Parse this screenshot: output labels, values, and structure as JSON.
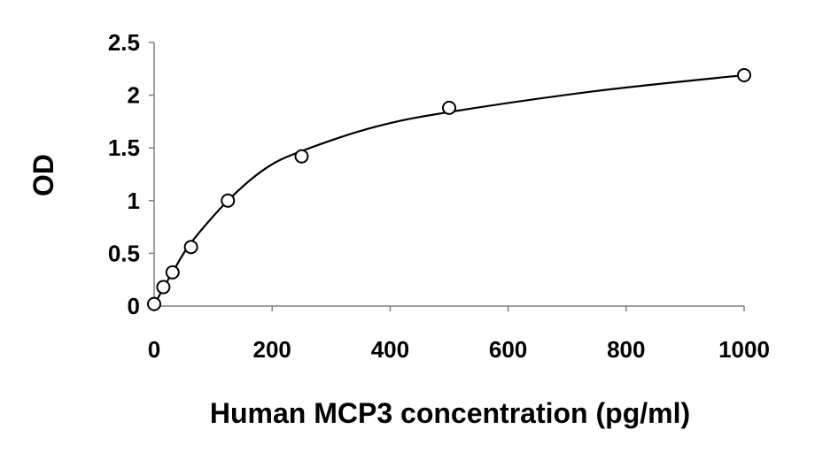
{
  "chart_data": {
    "type": "scatter",
    "title": "",
    "xlabel": "Human MCP3 concentration (pg/ml)",
    "ylabel": "OD",
    "xlim": [
      0,
      1000
    ],
    "ylim": [
      0,
      2.5
    ],
    "x_ticks": [
      "0",
      "200",
      "400",
      "600",
      "800",
      "1000"
    ],
    "y_ticks": [
      "0",
      "0.5",
      "1",
      "1.5",
      "2",
      "2.5"
    ],
    "grid": false,
    "legend": "none",
    "series": [
      {
        "marker": "open-circle",
        "color": "#000000",
        "points": [
          {
            "x": 0,
            "y": 0.02
          },
          {
            "x": 15.6,
            "y": 0.18
          },
          {
            "x": 31.2,
            "y": 0.32
          },
          {
            "x": 62.5,
            "y": 0.56
          },
          {
            "x": 125,
            "y": 1.0
          },
          {
            "x": 250,
            "y": 1.42
          },
          {
            "x": 500,
            "y": 1.88
          },
          {
            "x": 1000,
            "y": 2.19
          }
        ]
      }
    ],
    "fit_curve": {
      "style": "smooth",
      "color": "#000000",
      "points": [
        {
          "x": 0,
          "y": 0.01
        },
        {
          "x": 15.6,
          "y": 0.17
        },
        {
          "x": 31.2,
          "y": 0.32
        },
        {
          "x": 62.5,
          "y": 0.6
        },
        {
          "x": 125,
          "y": 1.0
        },
        {
          "x": 187.5,
          "y": 1.3
        },
        {
          "x": 250,
          "y": 1.47
        },
        {
          "x": 375,
          "y": 1.7
        },
        {
          "x": 500,
          "y": 1.84
        },
        {
          "x": 750,
          "y": 2.04
        },
        {
          "x": 1000,
          "y": 2.19
        }
      ]
    }
  }
}
